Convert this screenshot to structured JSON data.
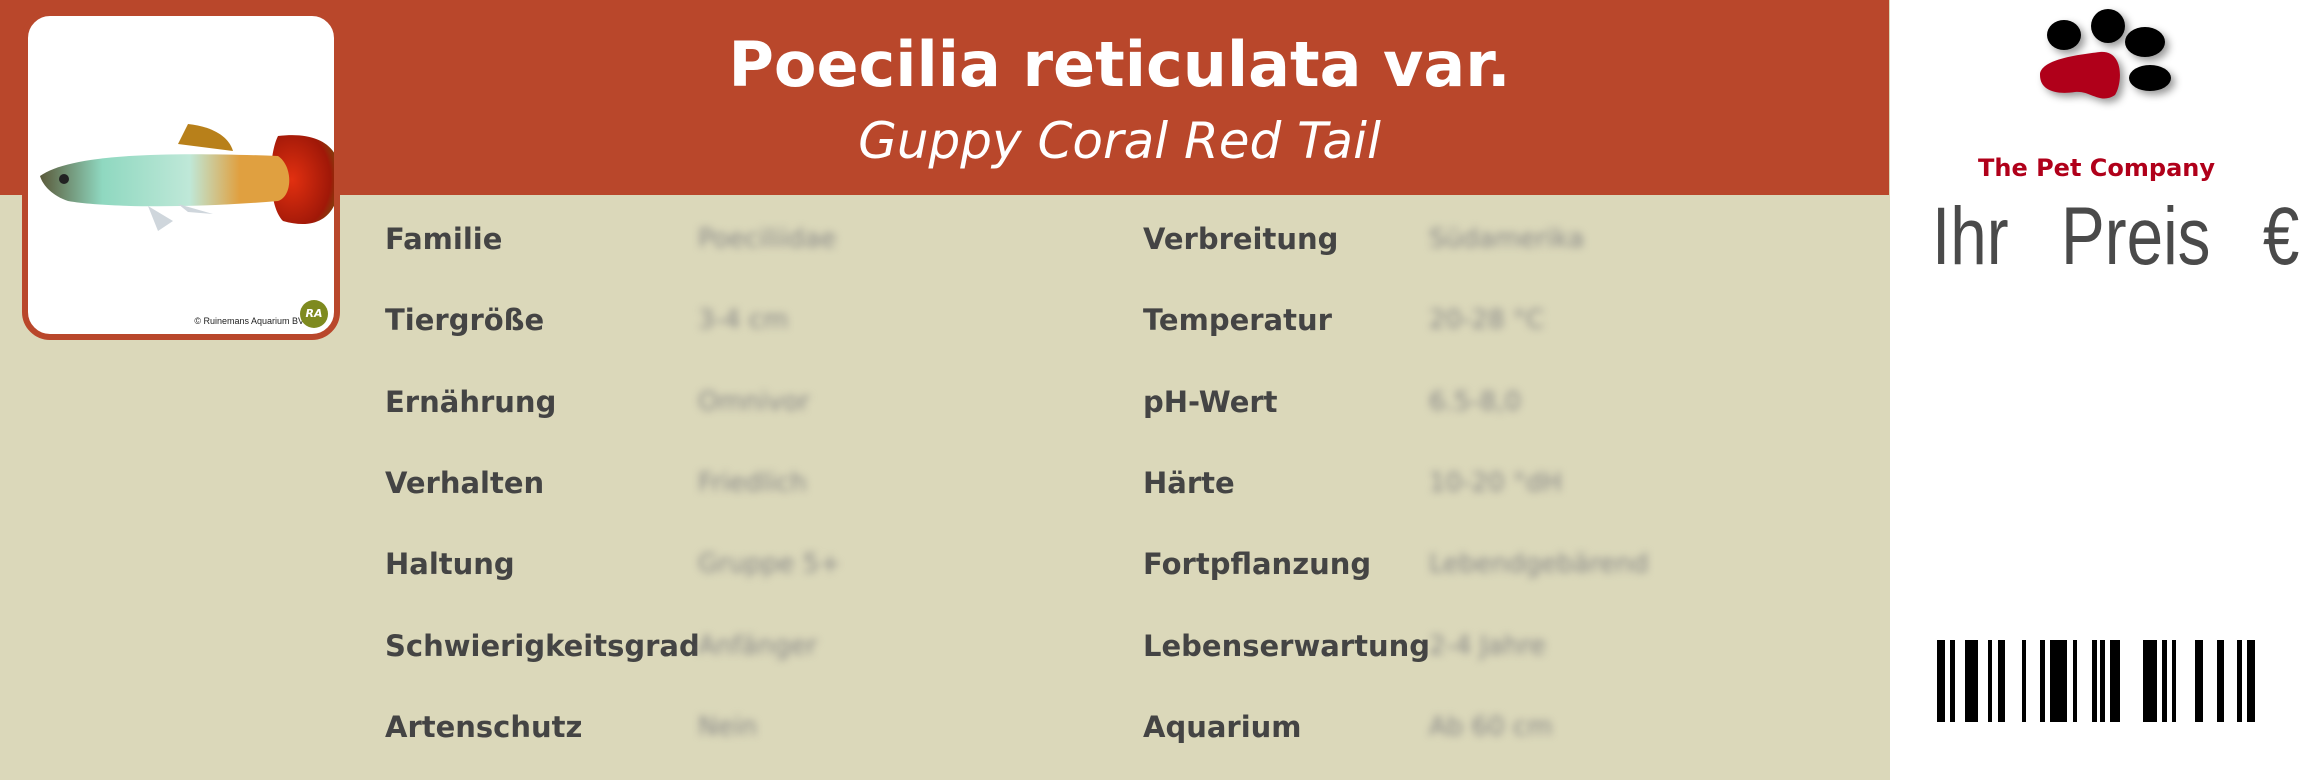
{
  "header": {
    "title": "Poecilia reticulata var.",
    "subtitle": "Guppy Coral Red Tail"
  },
  "photo": {
    "credit": "© Ruinemans Aquarium BV",
    "credit_logo_text": "RA"
  },
  "attributes_left": [
    {
      "label": "Familie",
      "value": "Poeciliidae"
    },
    {
      "label": "Tiergröße",
      "value": "3-4 cm"
    },
    {
      "label": "Ernährung",
      "value": "Omnivor"
    },
    {
      "label": "Verhalten",
      "value": "Friedlich"
    },
    {
      "label": "Haltung",
      "value": "Gruppe 5+"
    },
    {
      "label": "Schwierigkeitsgrad",
      "value": "Anfänger"
    },
    {
      "label": "Artenschutz",
      "value": "Nein"
    }
  ],
  "attributes_right": [
    {
      "label": "Verbreitung",
      "value": "Südamerika"
    },
    {
      "label": "Temperatur",
      "value": "20-28 °C"
    },
    {
      "label": "pH-Wert",
      "value": "6.5-8,0"
    },
    {
      "label": "Härte",
      "value": "10-20 °dH"
    },
    {
      "label": "Fortpflanzung",
      "value": "Lebendgebärend"
    },
    {
      "label": "Lebenserwartung",
      "value": "2-4 Jahre"
    },
    {
      "label": "Aquarium",
      "value": "Ab 60 cm"
    }
  ],
  "brand": {
    "name": "The Pet Company",
    "color": "#B0001A"
  },
  "price_label": "Ihr  Preis  €",
  "colors": {
    "header": "#B9472B",
    "background": "#DBD8BA",
    "text": "#444444"
  }
}
